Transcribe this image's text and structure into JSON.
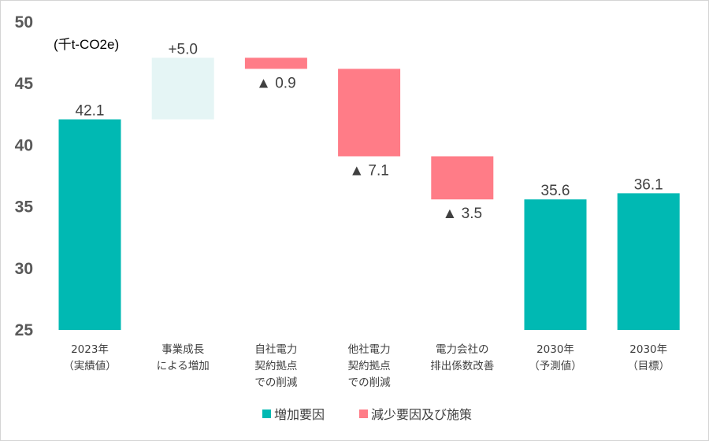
{
  "chart_data": {
    "type": "bar",
    "subtype": "waterfall",
    "unit_label": "(千t-CO2e)",
    "ylim": [
      25,
      50
    ],
    "yticks": [
      "25",
      "30",
      "35",
      "40",
      "45",
      "50"
    ],
    "grid": false,
    "categories": [
      [
        "2023年",
        "（実績値）"
      ],
      [
        "事業成長",
        "による増加"
      ],
      [
        "自社電力",
        "契約拠点",
        "での削減"
      ],
      [
        "他社電力",
        "契約拠点",
        "での削減"
      ],
      [
        "電力会社の",
        "排出係数改善"
      ],
      [
        "2030年",
        "（予測値）"
      ],
      [
        "2030年",
        "（目標）"
      ]
    ],
    "bars": [
      {
        "kind": "total",
        "bottom": 25,
        "top": 42.1,
        "label": "42.1",
        "label_pos": "above"
      },
      {
        "kind": "increase",
        "bottom": 42.1,
        "top": 47.1,
        "label": "+5.0",
        "label_pos": "above"
      },
      {
        "kind": "decrease",
        "bottom": 46.2,
        "top": 47.1,
        "label": "▲ 0.9",
        "label_pos": "below"
      },
      {
        "kind": "decrease",
        "bottom": 39.1,
        "top": 46.2,
        "label": "▲ 7.1",
        "label_pos": "below"
      },
      {
        "kind": "decrease",
        "bottom": 35.6,
        "top": 39.1,
        "label": "▲ 3.5",
        "label_pos": "below"
      },
      {
        "kind": "total",
        "bottom": 25,
        "top": 35.6,
        "label": "35.6",
        "label_pos": "above"
      },
      {
        "kind": "total",
        "bottom": 25,
        "top": 36.1,
        "label": "36.1",
        "label_pos": "above"
      }
    ],
    "colors": {
      "total": "#00B9B3",
      "increase": "#E5F5F5",
      "decrease": "#FF7C87"
    },
    "legend": {
      "position": "bottom",
      "entries": [
        {
          "label": "増加要因",
          "color": "#00B9B3"
        },
        {
          "label": "減少要因及び施策",
          "color": "#FF7C87"
        }
      ]
    }
  }
}
